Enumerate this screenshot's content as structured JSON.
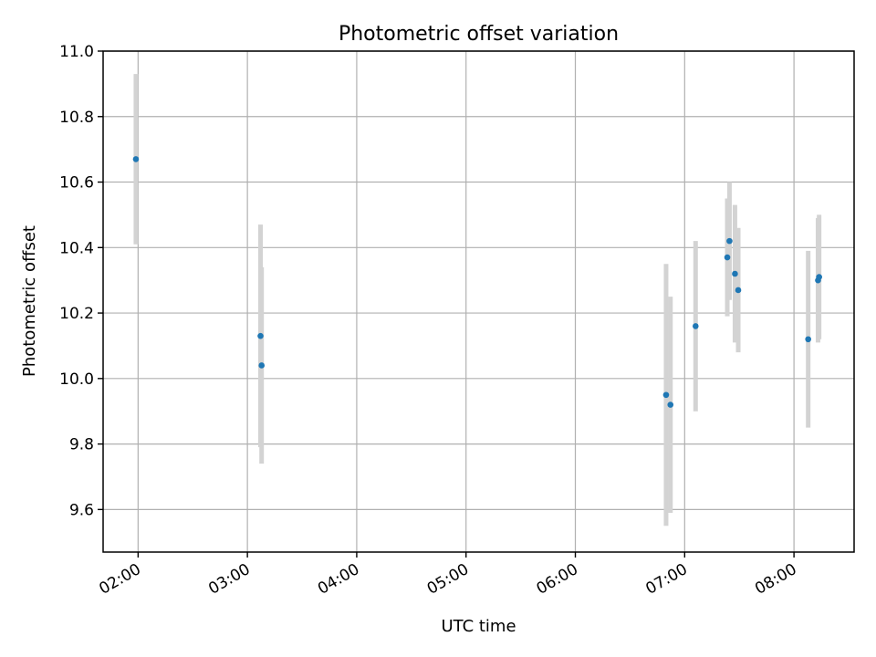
{
  "chart_data": {
    "type": "scatter",
    "title": "Photometric offset variation",
    "xlabel": "UTC time",
    "ylabel": "Photometric offset",
    "x_unit": "UTC time (hours)",
    "xlim": [
      1.68,
      8.55
    ],
    "ylim": [
      9.47,
      11.0
    ],
    "x_ticks": [
      {
        "value": 2,
        "label": "02:00"
      },
      {
        "value": 3,
        "label": "03:00"
      },
      {
        "value": 4,
        "label": "04:00"
      },
      {
        "value": 5,
        "label": "05:00"
      },
      {
        "value": 6,
        "label": "06:00"
      },
      {
        "value": 7,
        "label": "07:00"
      },
      {
        "value": 8,
        "label": "08:00"
      }
    ],
    "y_ticks": [
      {
        "value": 9.6,
        "label": "9.6"
      },
      {
        "value": 9.8,
        "label": "9.8"
      },
      {
        "value": 10.0,
        "label": "10.0"
      },
      {
        "value": 10.2,
        "label": "10.2"
      },
      {
        "value": 10.4,
        "label": "10.4"
      },
      {
        "value": 10.6,
        "label": "10.6"
      },
      {
        "value": 10.8,
        "label": "10.8"
      },
      {
        "value": 11.0,
        "label": "11.0"
      }
    ],
    "grid": true,
    "series": [
      {
        "color": "#1f77b4",
        "error_color": "#d3d3d3",
        "points": [
          {
            "x": 1.98,
            "y": 10.67,
            "err": 0.26
          },
          {
            "x": 3.12,
            "y": 10.13,
            "err": 0.34
          },
          {
            "x": 3.13,
            "y": 10.04,
            "err": 0.3
          },
          {
            "x": 6.83,
            "y": 9.95,
            "err": 0.4
          },
          {
            "x": 6.87,
            "y": 9.92,
            "err": 0.33
          },
          {
            "x": 7.1,
            "y": 10.16,
            "err": 0.26
          },
          {
            "x": 7.39,
            "y": 10.37,
            "err": 0.18
          },
          {
            "x": 7.41,
            "y": 10.42,
            "err": 0.18
          },
          {
            "x": 7.46,
            "y": 10.32,
            "err": 0.21
          },
          {
            "x": 7.49,
            "y": 10.27,
            "err": 0.19
          },
          {
            "x": 8.13,
            "y": 10.12,
            "err": 0.27
          },
          {
            "x": 8.22,
            "y": 10.3,
            "err": 0.19
          },
          {
            "x": 8.23,
            "y": 10.31,
            "err": 0.19
          }
        ]
      }
    ]
  }
}
